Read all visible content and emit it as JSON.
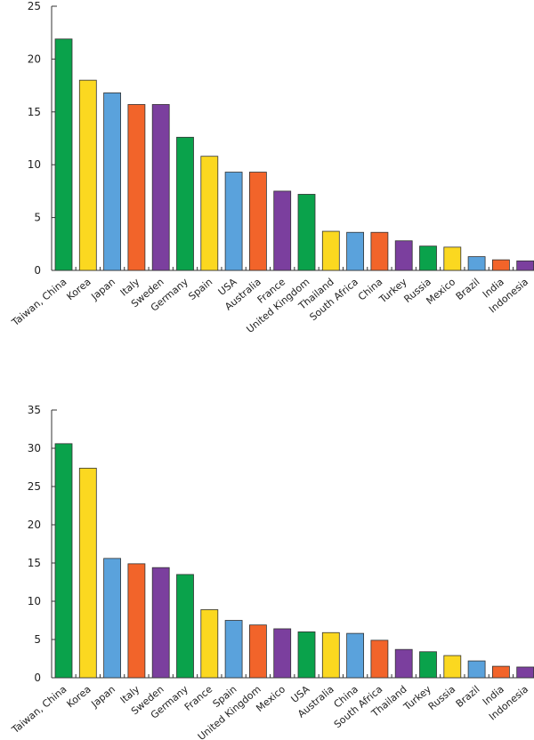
{
  "colors": {
    "green": "#0aa24b",
    "yellow": "#fbd820",
    "blue": "#5aa2dc",
    "orange": "#f2642a",
    "purple": "#7b3f9e"
  },
  "chart_data": [
    {
      "type": "bar",
      "title": "",
      "xlabel": "",
      "ylabel": "",
      "ylim": [
        0,
        25
      ],
      "yticks": [
        0,
        5,
        10,
        15,
        20,
        25
      ],
      "grid": false,
      "categories": [
        "Taiwan, China",
        "Korea",
        "Japan",
        "Italy",
        "Sweden",
        "Germany",
        "Spain",
        "USA",
        "Australia",
        "France",
        "United Kingdom",
        "Thailand",
        "South Africa",
        "China",
        "Turkey",
        "Russia",
        "Mexico",
        "Brazil",
        "India",
        "Indonesia"
      ],
      "values": [
        21.9,
        18.0,
        16.8,
        15.7,
        15.7,
        12.6,
        10.8,
        9.3,
        9.3,
        7.5,
        7.2,
        3.7,
        3.6,
        3.6,
        2.8,
        2.3,
        2.2,
        1.3,
        1.0,
        0.9
      ],
      "bar_colors": [
        "#0aa24b",
        "#fbd820",
        "#5aa2dc",
        "#f2642a",
        "#7b3f9e",
        "#0aa24b",
        "#fbd820",
        "#5aa2dc",
        "#f2642a",
        "#7b3f9e",
        "#0aa24b",
        "#fbd820",
        "#5aa2dc",
        "#f2642a",
        "#7b3f9e",
        "#0aa24b",
        "#fbd820",
        "#5aa2dc",
        "#f2642a",
        "#7b3f9e"
      ]
    },
    {
      "type": "bar",
      "title": "",
      "xlabel": "",
      "ylabel": "",
      "ylim": [
        0,
        35
      ],
      "yticks": [
        0,
        5,
        10,
        15,
        20,
        25,
        30,
        35
      ],
      "grid": false,
      "categories": [
        "Taiwan, China",
        "Korea",
        "Japan",
        "Italy",
        "Sweden",
        "Germany",
        "France",
        "Spain",
        "United Kingdom",
        "Mexico",
        "USA",
        "Australia",
        "China",
        "South Africa",
        "Thailand",
        "Turkey",
        "Russia",
        "Brazil",
        "India",
        "Indonesia"
      ],
      "values": [
        30.6,
        27.4,
        15.6,
        14.9,
        14.4,
        13.5,
        8.9,
        7.5,
        6.9,
        6.4,
        6.0,
        5.9,
        5.8,
        4.9,
        3.7,
        3.4,
        2.9,
        2.2,
        1.5,
        1.4
      ],
      "bar_colors": [
        "#0aa24b",
        "#fbd820",
        "#5aa2dc",
        "#f2642a",
        "#7b3f9e",
        "#0aa24b",
        "#fbd820",
        "#5aa2dc",
        "#f2642a",
        "#7b3f9e",
        "#0aa24b",
        "#fbd820",
        "#5aa2dc",
        "#f2642a",
        "#7b3f9e",
        "#0aa24b",
        "#fbd820",
        "#5aa2dc",
        "#f2642a",
        "#7b3f9e"
      ]
    }
  ]
}
